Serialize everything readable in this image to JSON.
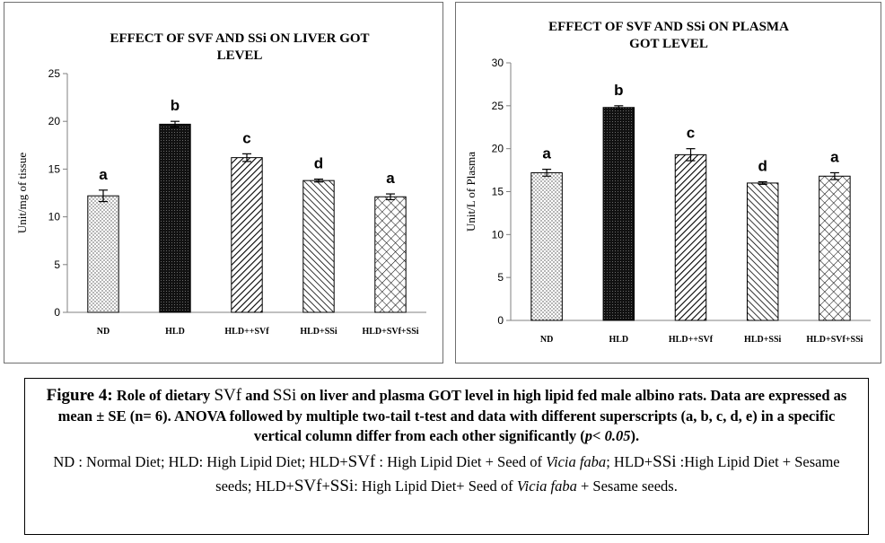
{
  "chart_data": [
    {
      "type": "bar",
      "title_lines": [
        "EFFECT OF SVF AND SSi ON LIVER GOT",
        "LEVEL"
      ],
      "ylabel": "Unit/mg of tissue",
      "ylim": [
        0,
        25
      ],
      "yticks": [
        "0",
        "5",
        "10",
        "15",
        "20",
        "25"
      ],
      "categories": [
        "ND",
        "HLD",
        "HLD++SVf",
        "HLD+SSi",
        "HLD+SVf+SSi"
      ],
      "values": [
        12.2,
        19.7,
        16.2,
        13.8,
        12.1
      ],
      "errors": [
        0.6,
        0.3,
        0.4,
        0.15,
        0.3
      ],
      "letters": [
        "a",
        "b",
        "c",
        "d",
        "a"
      ],
      "patterns": [
        "dots",
        "dark",
        "diag",
        "diag-back",
        "cross"
      ],
      "grid": false
    },
    {
      "type": "bar",
      "title_lines": [
        "EFFECT OF SVF AND SSi ON PLASMA",
        "GOT LEVEL"
      ],
      "ylabel": "Unit/L of Plasma",
      "ylim": [
        0,
        30
      ],
      "yticks": [
        "0",
        "5",
        "10",
        "15",
        "20",
        "25",
        "30"
      ],
      "categories": [
        "ND",
        "HLD",
        "HLD++SVf",
        "HLD+SSi",
        "HLD+SVf+SSi"
      ],
      "values": [
        17.2,
        24.8,
        19.3,
        16.0,
        16.8
      ],
      "errors": [
        0.4,
        0.2,
        0.7,
        0.15,
        0.4
      ],
      "letters": [
        "a",
        "b",
        "c",
        "d",
        "a"
      ],
      "patterns": [
        "dots",
        "dark",
        "diag",
        "diag-back",
        "cross"
      ],
      "grid": false
    }
  ],
  "caption": {
    "figure_label": "Figure 4:",
    "p1": " Role of dietary ",
    "svf": "SVf",
    "p2": " and ",
    "ssi": "SSi",
    "p3": " on liver and plasma GOT level in high lipid fed male albino rats. Data are expressed as mean ± SE (n= 6). ANOVA followed by multiple two-tail t-test and data with different superscripts (a, b, c, d, e) in a specific vertical column differ from each other significantly (",
    "p_ital": "p",
    "p4": "< ",
    "p_val": "0.05",
    "p5": ").",
    "legend": {
      "l1": "ND : Normal Diet; HLD: High Lipid Diet; HLD+",
      "l1_svf": "SVf",
      "l2": " : High Lipid Diet + Seed of ",
      "vicia1": "Vicia faba",
      "l3": "; HLD+",
      "l3_ssi": "SSi",
      "l4": " :High Lipid Diet + Sesame seeds; HLD+",
      "l4_svf": "SVf",
      "l4_plus": "+",
      "l4_ssi": "SSi",
      "l5": ":  High Lipid Diet+ Seed of ",
      "vicia2": "Vicia faba",
      "l6": " + Sesame seeds."
    }
  }
}
